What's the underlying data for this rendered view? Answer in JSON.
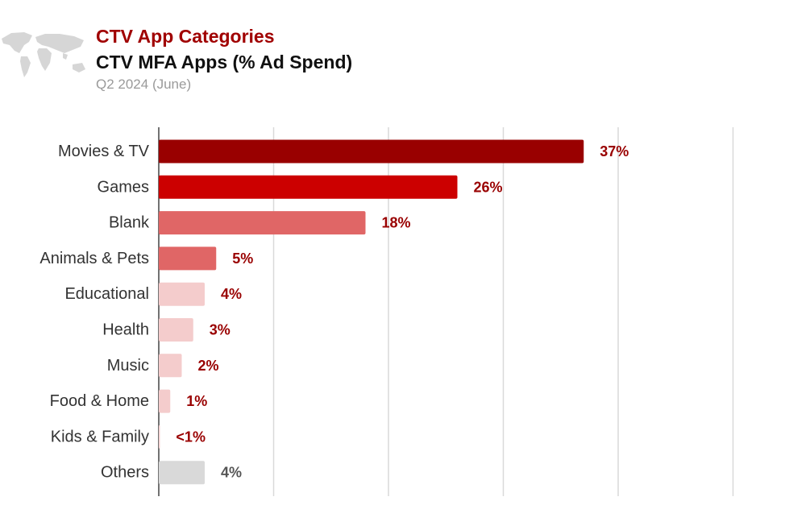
{
  "header": {
    "category": "CTV App Categories",
    "title": "CTV MFA Apps (% Ad Spend)",
    "subtitle": "Q2 2024 (June)"
  },
  "chart_data": {
    "type": "bar",
    "orientation": "horizontal",
    "title": "CTV MFA Apps (% Ad Spend)",
    "subtitle": "Q2 2024 (June)",
    "xlabel": "",
    "ylabel": "",
    "xlim": [
      0,
      50
    ],
    "grid": true,
    "categories": [
      "Movies & TV",
      "Games",
      "Blank",
      "Animals & Pets",
      "Educational",
      "Health",
      "Music",
      "Food & Home",
      "Kids & Family",
      "Others"
    ],
    "values": [
      37,
      26,
      18,
      5,
      4,
      3,
      2,
      1,
      0.1,
      4
    ],
    "value_labels": [
      "37%",
      "26%",
      "18%",
      "5%",
      "4%",
      "3%",
      "2%",
      "1%",
      "<1%",
      "4%"
    ],
    "bar_colors": [
      "#990000",
      "#cc0000",
      "#e06666",
      "#e06666",
      "#f4cccc",
      "#f4cccc",
      "#f4cccc",
      "#f4cccc",
      "#f4cccc",
      "#d9d9d9"
    ],
    "label_colors": [
      "#990000",
      "#990000",
      "#990000",
      "#990000",
      "#990000",
      "#990000",
      "#990000",
      "#990000",
      "#990000",
      "#555555"
    ]
  }
}
